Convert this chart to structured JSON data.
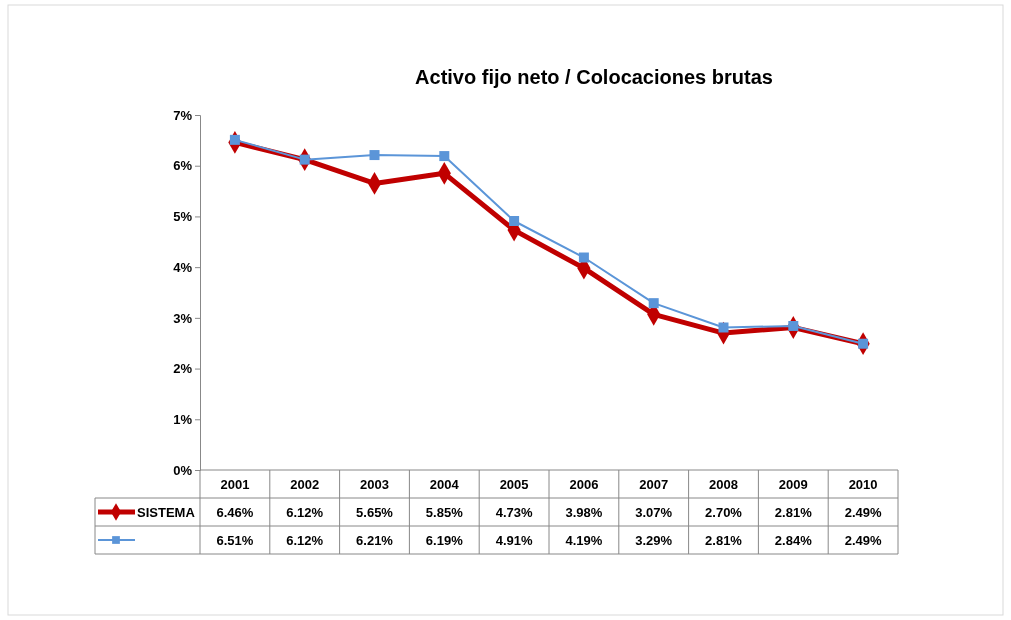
{
  "chart_data": {
    "type": "line",
    "title": "Activo fijo neto / Colocaciones brutas",
    "categories": [
      "2001",
      "2002",
      "2003",
      "2004",
      "2005",
      "2006",
      "2007",
      "2008",
      "2009",
      "2010"
    ],
    "ylim": [
      0,
      7
    ],
    "yticks": [
      {
        "value": 0,
        "label": "0%"
      },
      {
        "value": 1,
        "label": "1%"
      },
      {
        "value": 2,
        "label": "2%"
      },
      {
        "value": 3,
        "label": "3%"
      },
      {
        "value": 4,
        "label": "4%"
      },
      {
        "value": 5,
        "label": "5%"
      },
      {
        "value": 6,
        "label": "6%"
      },
      {
        "value": 7,
        "label": "7%"
      }
    ],
    "grid": false,
    "legend": "bottom left",
    "line_style": "solid",
    "series": [
      {
        "name": "SISTEMA",
        "color": "#c00000",
        "marker": "diamond",
        "values": [
          6.46,
          6.12,
          5.65,
          5.85,
          4.73,
          3.98,
          3.07,
          2.7,
          2.81,
          2.49
        ],
        "value_labels": [
          "6.46%",
          "6.12%",
          "5.65%",
          "5.85%",
          "4.73%",
          "3.98%",
          "3.07%",
          "2.70%",
          "2.81%",
          "2.49%"
        ]
      },
      {
        "color": "#5b95d8",
        "marker": "square",
        "values": [
          6.51,
          6.12,
          6.21,
          6.19,
          4.91,
          4.19,
          3.29,
          2.81,
          2.84,
          2.49
        ],
        "value_labels": [
          "6.51%",
          "6.12%",
          "6.21%",
          "6.19%",
          "4.91%",
          "4.19%",
          "3.29%",
          "2.81%",
          "2.84%",
          "2.49%"
        ]
      }
    ]
  }
}
